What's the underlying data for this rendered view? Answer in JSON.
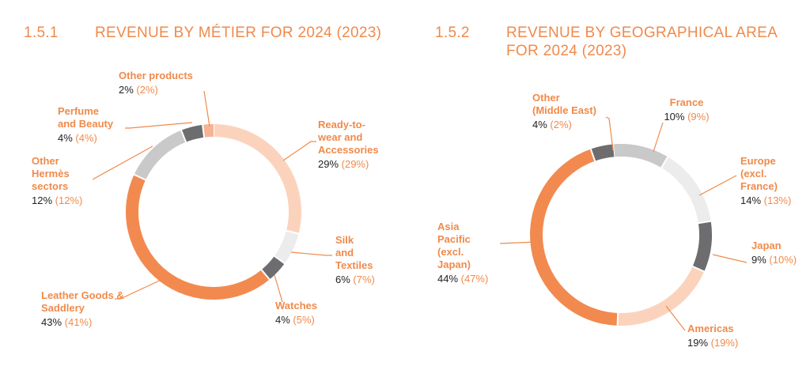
{
  "headers": [
    {
      "number": "1.5.1",
      "title_lines": [
        "REVENUE BY MÉTIER FOR 2024 (2023)"
      ]
    },
    {
      "number": "1.5.2",
      "title_lines": [
        "REVENUE BY GEOGRAPHICAL AREA",
        "FOR 2024 (2023)"
      ]
    }
  ],
  "chart_data": [
    {
      "type": "pie",
      "title": "REVENUE BY MÉTIER FOR 2024 (2023)",
      "donut": true,
      "slices": [
        {
          "name": "Ready-to-wear and Accessories",
          "label_lines": [
            "Ready-to-",
            "wear and",
            "Accessories"
          ],
          "value": 29,
          "value_text": "29%",
          "prev_text": "(29%)",
          "color": "#fbd3bd"
        },
        {
          "name": "Silk and Textiles",
          "label_lines": [
            "Silk",
            "and",
            "Textiles"
          ],
          "value": 6,
          "value_text": "6%",
          "prev_text": "(7%)",
          "color": "#ececec"
        },
        {
          "name": "Watches",
          "label_lines": [
            "Watches"
          ],
          "value": 4,
          "value_text": "4%",
          "prev_text": "(5%)",
          "color": "#6d6d6f"
        },
        {
          "name": "Leather Goods & Saddlery",
          "label_lines": [
            "Leather Goods &",
            "Saddlery"
          ],
          "value": 43,
          "value_text": "43%",
          "prev_text": "(41%)",
          "color": "#f28a50"
        },
        {
          "name": "Other Hermès sectors",
          "label_lines": [
            "Other",
            "Hermès",
            "sectors"
          ],
          "value": 12,
          "value_text": "12%",
          "prev_text": "(12%)",
          "color": "#c9c9c9"
        },
        {
          "name": "Perfume and Beauty",
          "label_lines": [
            "Perfume",
            "and Beauty"
          ],
          "value": 4,
          "value_text": "4%",
          "prev_text": "(4%)",
          "color": "#6d6d6f"
        },
        {
          "name": "Other products",
          "label_lines": [
            "Other products"
          ],
          "value": 2,
          "value_text": "2%",
          "prev_text": "(2%)",
          "color": "#f6b494"
        }
      ]
    },
    {
      "type": "pie",
      "title": "REVENUE BY GEOGRAPHICAL AREA FOR 2024 (2023)",
      "donut": true,
      "slices": [
        {
          "name": "France",
          "label_lines": [
            "France"
          ],
          "value": 10,
          "value_text": "10%",
          "prev_text": "(9%)",
          "color": "#c9c9c9"
        },
        {
          "name": "Europe (excl. France)",
          "label_lines": [
            "Europe",
            "(excl.",
            "France)"
          ],
          "value": 14,
          "value_text": "14%",
          "prev_text": "(13%)",
          "color": "#ececec"
        },
        {
          "name": "Japan",
          "label_lines": [
            "Japan"
          ],
          "value": 9,
          "value_text": "9%",
          "prev_text": "(10%)",
          "color": "#6d6d6f"
        },
        {
          "name": "Americas",
          "label_lines": [
            "Americas"
          ],
          "value": 19,
          "value_text": "19%",
          "prev_text": "(19%)",
          "color": "#fbd3bd"
        },
        {
          "name": "Asia Pacific (excl. Japan)",
          "label_lines": [
            "Asia",
            "Pacific",
            "(excl.",
            "Japan)"
          ],
          "value": 44,
          "value_text": "44%",
          "prev_text": "(47%)",
          "color": "#f28a50"
        },
        {
          "name": "Other (Middle East)",
          "label_lines": [
            "Other",
            "(Middle East)"
          ],
          "value": 4,
          "value_text": "4%",
          "prev_text": "(2%)",
          "color": "#6d6d6f"
        }
      ]
    }
  ]
}
